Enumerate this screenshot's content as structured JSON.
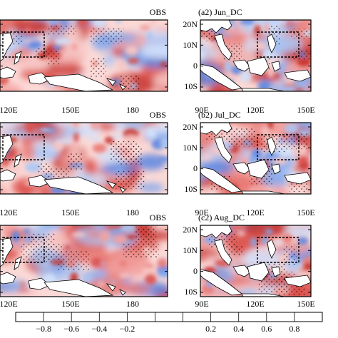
{
  "panels": [
    {
      "id": "a1",
      "tag": "OBS",
      "lat_labels": [],
      "lon_labels": [],
      "row": 0,
      "col": 0
    },
    {
      "id": "a2",
      "tag": "(a2) Jun_DC",
      "lat_labels": [
        "20N",
        "10N",
        "0",
        "10S"
      ],
      "lon_labels": [],
      "row": 0,
      "col": 1
    },
    {
      "id": "b1",
      "tag": "OBS",
      "lat_labels": [],
      "lon_labels": [
        "120E",
        "150E",
        "180"
      ],
      "row": 1,
      "col": 0
    },
    {
      "id": "b2",
      "tag": "(b2) Jul_DC",
      "lat_labels": [
        "20N",
        "10N",
        "0",
        "10S"
      ],
      "lon_labels": [
        "90E",
        "120E",
        "150E"
      ],
      "row": 1,
      "col": 1
    },
    {
      "id": "c1",
      "tag": "OBS",
      "lat_labels": [],
      "lon_labels": [
        "120E",
        "150E",
        "180"
      ],
      "row": 2,
      "col": 0
    },
    {
      "id": "c2",
      "tag": "(c2) Aug_DC",
      "lat_labels": [
        "20N",
        "10N",
        "0",
        "10S"
      ],
      "lon_labels": [
        "90E",
        "120E",
        "150E"
      ],
      "row": 2,
      "col": 1
    }
  ],
  "top_lon_labels_a1": [
    "120E",
    "150E",
    "180"
  ],
  "top_lon_labels_a2": [
    "90E",
    "120E",
    "150E"
  ],
  "colorbar": {
    "labels": [
      "−0.8",
      "−0.6",
      "−0.4",
      "−0.2",
      "0.2",
      "0.4",
      "0.6",
      "0.8"
    ],
    "colors": [
      "#2b4fd0",
      "#4f78de",
      "#7aa0ea",
      "#a9c4f3",
      "#d5e3fa",
      "#ffffff",
      "#fad2d0",
      "#f3a3a1",
      "#e87672",
      "#d9463f",
      "#b81d1d"
    ]
  },
  "colors": {
    "land": "#ffffff",
    "coast": "#000000",
    "box": "#000000"
  }
}
